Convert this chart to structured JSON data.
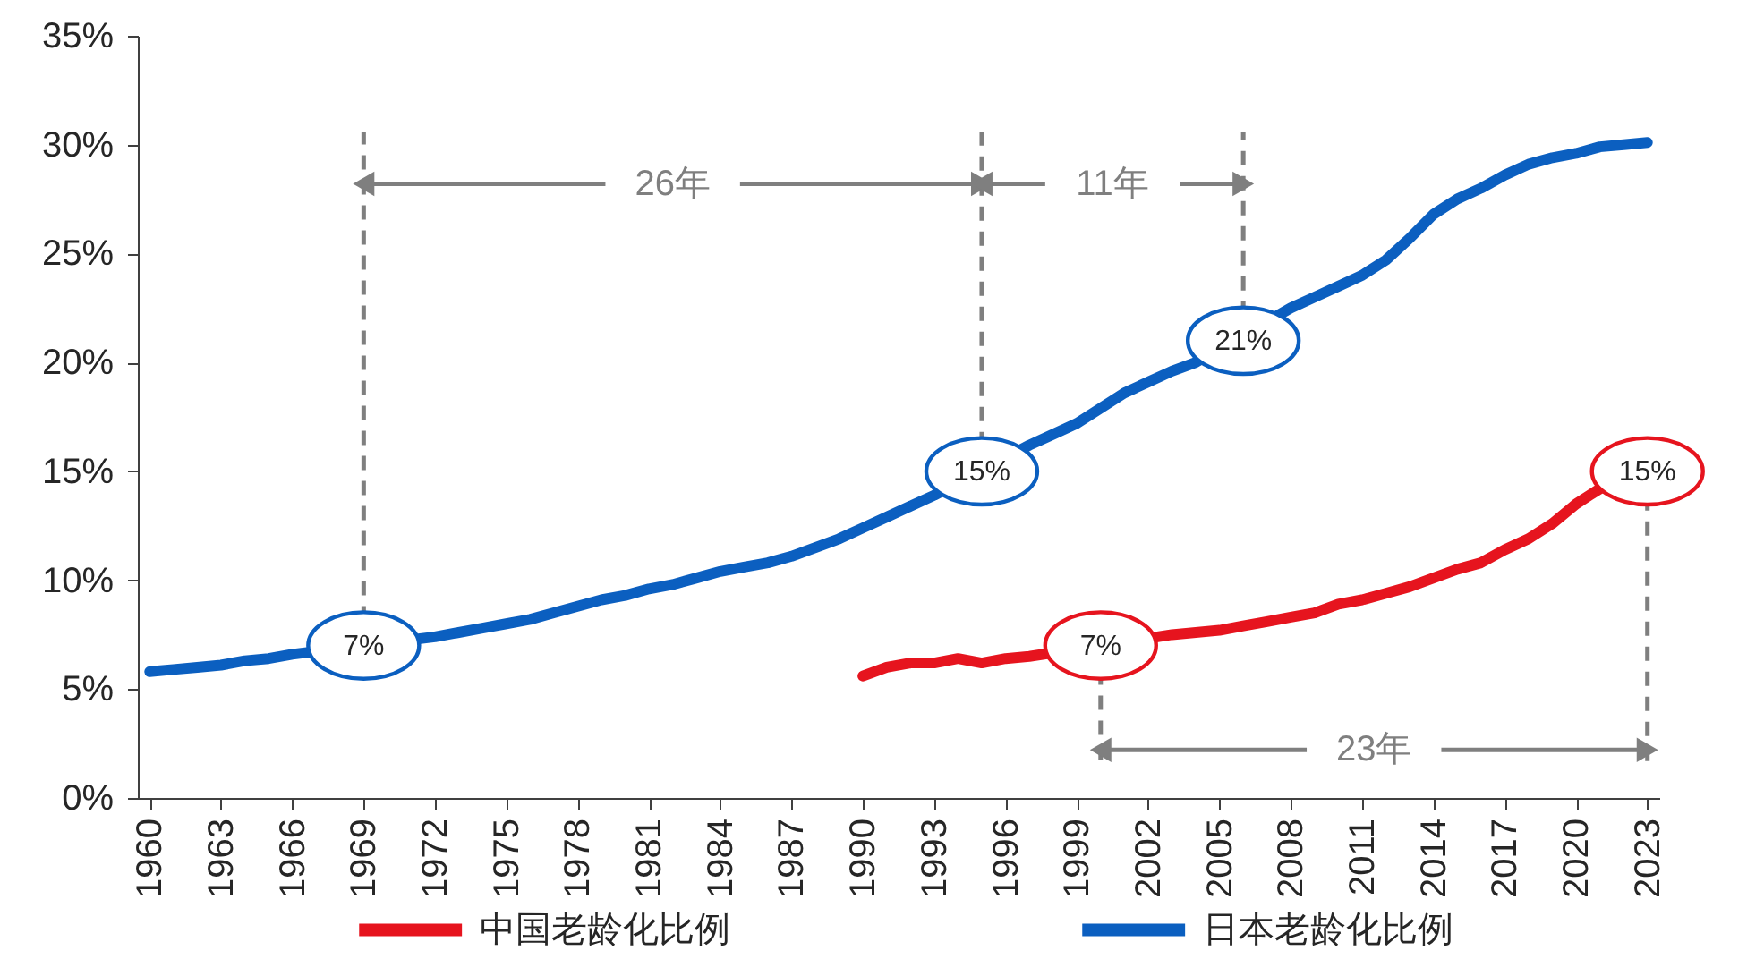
{
  "chart_data": {
    "type": "line",
    "x": [
      1960,
      1961,
      1962,
      1963,
      1964,
      1965,
      1966,
      1967,
      1968,
      1969,
      1970,
      1971,
      1972,
      1973,
      1974,
      1975,
      1976,
      1977,
      1978,
      1979,
      1980,
      1981,
      1982,
      1983,
      1984,
      1985,
      1986,
      1987,
      1988,
      1989,
      1990,
      1991,
      1992,
      1993,
      1994,
      1995,
      1996,
      1997,
      1998,
      1999,
      2000,
      2001,
      2002,
      2003,
      2004,
      2005,
      2006,
      2007,
      2008,
      2009,
      2010,
      2011,
      2012,
      2013,
      2014,
      2015,
      2016,
      2017,
      2018,
      2019,
      2020,
      2021,
      2022,
      2023
    ],
    "series": [
      {
        "name": "中国老龄化比例",
        "color": "#e6141e",
        "x": [
          1990,
          1991,
          1992,
          1993,
          1994,
          1995,
          1996,
          1997,
          1998,
          1999,
          2000,
          2001,
          2002,
          2003,
          2004,
          2005,
          2006,
          2007,
          2008,
          2009,
          2010,
          2011,
          2012,
          2013,
          2014,
          2015,
          2016,
          2017,
          2018,
          2019,
          2020,
          2021
        ],
        "values": [
          5.6,
          6.0,
          6.2,
          6.2,
          6.4,
          6.2,
          6.4,
          6.5,
          null,
          null,
          null,
          null,
          null,
          7.5,
          7.6,
          7.7,
          7.9,
          8.1,
          8.3,
          8.5,
          8.9,
          9.1,
          9.4,
          9.7,
          10.1,
          10.5,
          10.8,
          11.4,
          11.9,
          12.6,
          13.5,
          14.2
        ]
      },
      {
        "name": "日本老龄化比例",
        "color": "#0b5fc0",
        "values": [
          5.8,
          5.9,
          6.0,
          6.1,
          6.3,
          6.4,
          6.6,
          null,
          null,
          null,
          null,
          null,
          7.4,
          7.6,
          7.8,
          8.0,
          8.2,
          8.5,
          8.8,
          9.1,
          9.3,
          9.6,
          9.8,
          10.1,
          10.4,
          10.6,
          10.8,
          11.1,
          11.5,
          11.9,
          12.4,
          12.9,
          13.4,
          13.9,
          null,
          null,
          null,
          16.2,
          16.7,
          17.2,
          17.9,
          18.6,
          19.1,
          19.6,
          20.0,
          null,
          null,
          null,
          22.5,
          23.0,
          23.5,
          24.0,
          24.7,
          25.7,
          26.8,
          27.5,
          28.0,
          28.6,
          29.1,
          29.4,
          29.6,
          29.9,
          30.0,
          30.1
        ]
      }
    ],
    "xlim": [
      1959.5,
      2023.5
    ],
    "xticks": [
      1960,
      1963,
      1966,
      1969,
      1972,
      1975,
      1978,
      1981,
      1984,
      1987,
      1990,
      1993,
      1996,
      1999,
      2002,
      2005,
      2008,
      2011,
      2014,
      2017,
      2020,
      2023
    ],
    "ylim": [
      0,
      35
    ],
    "yticks": [
      {
        "value": 0,
        "label": "0%"
      },
      {
        "value": 5,
        "label": "5%"
      },
      {
        "value": 10,
        "label": "10%"
      },
      {
        "value": 15,
        "label": "15%"
      },
      {
        "value": 20,
        "label": "20%"
      },
      {
        "value": 25,
        "label": "25%"
      },
      {
        "value": 30,
        "label": "30%"
      },
      {
        "value": 35,
        "label": "35%"
      }
    ],
    "annotations": [
      {
        "text": "7%",
        "x": 1969,
        "y": 7
      },
      {
        "text": "15%",
        "x": 1995,
        "y": 15
      },
      {
        "text": "21%",
        "x": 2006,
        "y": 21
      },
      {
        "text": "7%",
        "x": 2000,
        "y": 7
      },
      {
        "text": "15%",
        "x": 2023,
        "y": 15
      },
      {
        "text": "26年",
        "x": 1995,
        "y": 28.2
      },
      {
        "text": "11年",
        "x": 1995,
        "y": 28.2
      },
      "23年"
    ],
    "ref_lines": [
      {
        "axis": "x",
        "value": 1969,
        "color": "#7f7f7f",
        "line_style": "dashed"
      },
      {
        "axis": "x",
        "value": 1995,
        "color": "#7f7f7f",
        "line_style": "dashed"
      },
      {
        "axis": "x",
        "value": 2006,
        "color": "#7f7f7f",
        "line_style": "dashed"
      },
      {
        "axis": "x",
        "value": 2000,
        "color": "#7f7f7f",
        "line_style": "dashed"
      },
      {
        "axis": "x",
        "value": 2023,
        "color": "#7f7f7f",
        "line_style": "dashed"
      }
    ],
    "legend": "bottom"
  }
}
